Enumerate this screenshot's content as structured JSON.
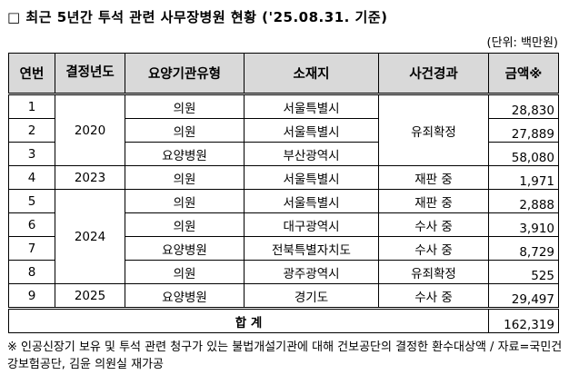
{
  "title": "□ 최근 5년간 투석 관련 사무장병원 현황 ('25.08.31. 기준)",
  "unit": "(단위: 백만원)",
  "headers": [
    "연번",
    "결정년도",
    "요양기관유형",
    "소재지",
    "사건경과",
    "금액※"
  ],
  "rows": [
    {
      "no": "1",
      "year": "2020",
      "type": "의원",
      "loc": "서울특별시",
      "status": "유죄확정",
      "amount": "28,830"
    },
    {
      "no": "2",
      "type": "의원",
      "loc": "서울특별시",
      "amount": "27,889"
    },
    {
      "no": "3",
      "type": "요양병원",
      "loc": "부산광역시",
      "amount": "58,080"
    },
    {
      "no": "4",
      "year": "2023",
      "type": "의원",
      "loc": "서울특별시",
      "status": "재판 중",
      "amount": "1,971"
    },
    {
      "no": "5",
      "year": "2024",
      "type": "의원",
      "loc": "서울특별시",
      "status": "재판 중",
      "amount": "2,888"
    },
    {
      "no": "6",
      "type": "의원",
      "loc": "대구광역시",
      "status": "수사 중",
      "amount": "3,910"
    },
    {
      "no": "7",
      "type": "요양병원",
      "loc": "전북특별자치도",
      "status": "수사 중",
      "amount": "8,729"
    },
    {
      "no": "8",
      "type": "의원",
      "loc": "광주광역시",
      "status": "유죄확정",
      "amount": "525"
    },
    {
      "no": "9",
      "year": "2025",
      "type": "요양병원",
      "loc": "경기도",
      "status": "수사 중",
      "amount": "29,497"
    }
  ],
  "total": {
    "label": "합 계",
    "amount": "162,319"
  },
  "note": "※ 인공신장기 보유 및 투석 관련 청구가 있는 불법개설기관에 대해 건보공단의 결정한 환수대상액 / 자료=국민건강보험공단, 김윤 의원실 재가공"
}
